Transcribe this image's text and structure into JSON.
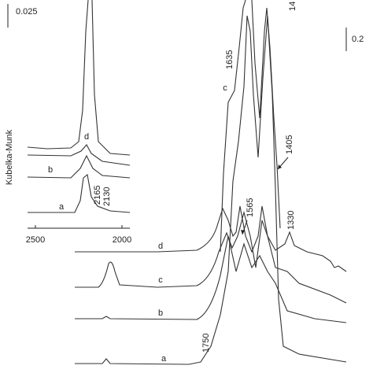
{
  "scale_bars": [
    "0.025",
    "0.2"
  ],
  "y_axis_label": "Kubelka-Munk",
  "inset": {
    "x_ticks": [
      2500,
      2000
    ],
    "curve_labels": [
      "d",
      "b",
      "a"
    ],
    "peak_labels": [
      "2165",
      "2130"
    ]
  },
  "main": {
    "curve_labels": [
      "c",
      "d",
      "c",
      "b",
      "a"
    ],
    "peak_labels": [
      "1635",
      "14",
      "1405",
      "1565",
      "1330",
      "1750"
    ]
  }
}
